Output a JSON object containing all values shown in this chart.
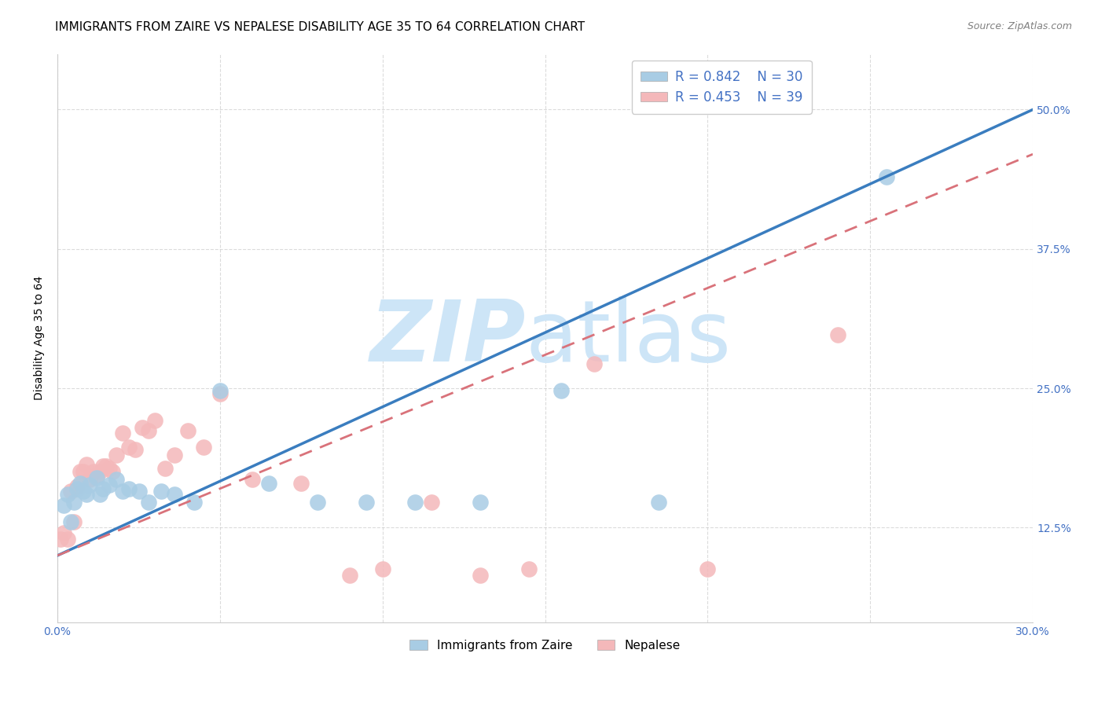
{
  "title": "IMMIGRANTS FROM ZAIRE VS NEPALESE DISABILITY AGE 35 TO 64 CORRELATION CHART",
  "source": "Source: ZipAtlas.com",
  "ylabel": "Disability Age 35 to 64",
  "xlim": [
    0.0,
    0.3
  ],
  "ylim": [
    0.04,
    0.55
  ],
  "x_tick_positions": [
    0.0,
    0.05,
    0.1,
    0.15,
    0.2,
    0.25,
    0.3
  ],
  "y_tick_positions": [
    0.125,
    0.25,
    0.375,
    0.5
  ],
  "grid_color": "#cccccc",
  "background_color": "#ffffff",
  "watermark_text1": "ZIP",
  "watermark_text2": "atlas",
  "watermark_color": "#cde5f7",
  "legend_r1": "R = 0.842",
  "legend_n1": "N = 30",
  "legend_r2": "R = 0.453",
  "legend_n2": "N = 39",
  "zaire_scatter_color": "#a8cce4",
  "nepalese_scatter_color": "#f4b8ba",
  "zaire_line_color": "#3a7dbf",
  "nepalese_line_color": "#d9727a",
  "tick_label_color": "#4472c4",
  "title_fontsize": 11,
  "axis_label_fontsize": 10,
  "tick_fontsize": 10,
  "legend_fontsize": 11,
  "zaire_line_y0": 0.1,
  "zaire_line_y1": 0.5,
  "nepalese_line_y0": 0.1,
  "nepalese_line_y1": 0.46,
  "zaire_x": [
    0.002,
    0.003,
    0.004,
    0.005,
    0.006,
    0.007,
    0.008,
    0.009,
    0.01,
    0.012,
    0.013,
    0.014,
    0.016,
    0.018,
    0.02,
    0.022,
    0.025,
    0.028,
    0.032,
    0.036,
    0.042,
    0.05,
    0.065,
    0.08,
    0.095,
    0.11,
    0.13,
    0.155,
    0.185,
    0.255
  ],
  "zaire_y": [
    0.145,
    0.155,
    0.13,
    0.148,
    0.16,
    0.165,
    0.158,
    0.155,
    0.163,
    0.17,
    0.155,
    0.16,
    0.163,
    0.168,
    0.158,
    0.16,
    0.158,
    0.148,
    0.158,
    0.155,
    0.148,
    0.248,
    0.165,
    0.148,
    0.148,
    0.148,
    0.148,
    0.248,
    0.148,
    0.44
  ],
  "nepalese_x": [
    0.001,
    0.002,
    0.003,
    0.004,
    0.005,
    0.006,
    0.007,
    0.008,
    0.009,
    0.01,
    0.011,
    0.012,
    0.013,
    0.014,
    0.015,
    0.016,
    0.017,
    0.018,
    0.02,
    0.022,
    0.024,
    0.026,
    0.028,
    0.03,
    0.033,
    0.036,
    0.04,
    0.045,
    0.05,
    0.06,
    0.075,
    0.09,
    0.1,
    0.115,
    0.13,
    0.145,
    0.165,
    0.2,
    0.24
  ],
  "nepalese_y": [
    0.115,
    0.12,
    0.115,
    0.158,
    0.13,
    0.162,
    0.175,
    0.175,
    0.182,
    0.168,
    0.175,
    0.172,
    0.175,
    0.18,
    0.18,
    0.178,
    0.175,
    0.19,
    0.21,
    0.197,
    0.195,
    0.215,
    0.212,
    0.221,
    0.178,
    0.19,
    0.212,
    0.197,
    0.245,
    0.168,
    0.165,
    0.082,
    0.088,
    0.148,
    0.082,
    0.088,
    0.272,
    0.088,
    0.298
  ]
}
